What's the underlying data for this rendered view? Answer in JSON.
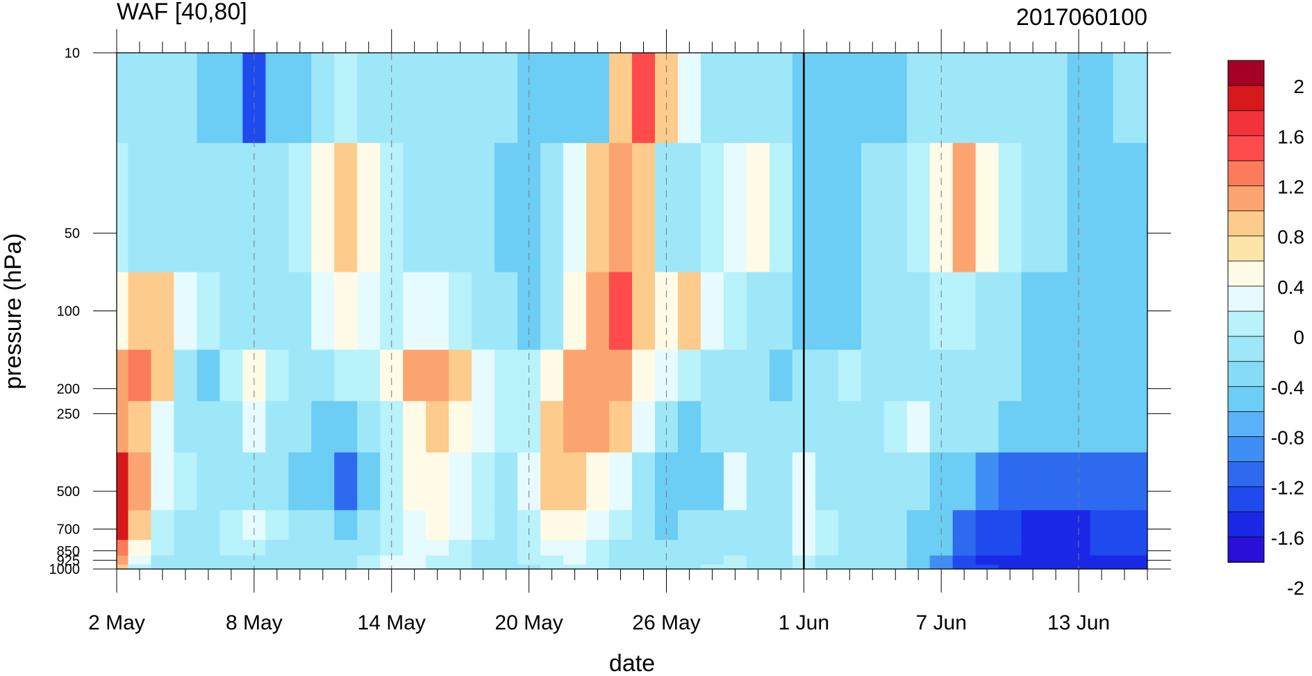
{
  "chart_data": {
    "type": "heatmap",
    "title_left": "WAF [40,80]",
    "title_right": "2017060100",
    "xlabel": "date",
    "ylabel": "pressure (hPa)",
    "x_tick_labels": [
      "2 May",
      "8 May",
      "14 May",
      "20 May",
      "26 May",
      "1 Jun",
      "7 Jun",
      "13 Jun"
    ],
    "y_tick_labels": [
      "10",
      "50",
      "100",
      "200",
      "250",
      "500",
      "700",
      "850",
      "925",
      "1000"
    ],
    "y_axis_scale": "log",
    "yrange_hPa": [
      1000,
      10
    ],
    "xrange": [
      "2 May",
      "16 Jun"
    ],
    "contour_interval": 0.2,
    "vertical_marker": "1 Jun",
    "legend_placement": "right",
    "colorbar": {
      "labels": [
        "2",
        "1.6",
        "1.2",
        "0.8",
        "0.4",
        "0",
        "-0.4",
        "-0.8",
        "-1.2",
        "-1.6",
        "-2"
      ],
      "colors": [
        "#a50026",
        "#d7191c",
        "#f2333a",
        "#ff4b4b",
        "#fc7b5a",
        "#fca46f",
        "#fdcb8b",
        "#fde5a9",
        "#fffbe6",
        "#e6fbff",
        "#b8f2fb",
        "#9ee7f9",
        "#86dcf7",
        "#6ccdf5",
        "#5ab1f7",
        "#3f8ef5",
        "#2d6af0",
        "#1f4aee",
        "#1a28e6",
        "#2a0fd8"
      ]
    },
    "pressure_levels": [
      10,
      50,
      100,
      200,
      250,
      500,
      700,
      850,
      925,
      1000
    ],
    "days": [
      "2 May",
      "3 May",
      "4 May",
      "5 May",
      "6 May",
      "7 May",
      "8 May",
      "9 May",
      "10 May",
      "11 May",
      "12 May",
      "13 May",
      "14 May",
      "15 May",
      "16 May",
      "17 May",
      "18 May",
      "19 May",
      "20 May",
      "21 May",
      "22 May",
      "23 May",
      "24 May",
      "25 May",
      "26 May",
      "27 May",
      "28 May",
      "29 May",
      "30 May",
      "31 May",
      "1 Jun",
      "2 Jun",
      "3 Jun",
      "4 Jun",
      "5 Jun",
      "6 Jun",
      "7 Jun",
      "8 Jun",
      "9 Jun",
      "10 Jun",
      "11 Jun",
      "12 Jun",
      "13 Jun",
      "14 Jun",
      "15 Jun",
      "16 Jun"
    ],
    "values": [
      [
        -0.2,
        -0.2,
        -0.4,
        -0.4,
        -0.6,
        -0.6,
        -1.4,
        -0.8,
        -0.6,
        -0.2,
        0.0,
        -0.2,
        -0.4,
        -0.4,
        -0.4,
        -0.2,
        -0.2,
        -0.4,
        -0.6,
        -0.6,
        -0.8,
        -0.6,
        0.6,
        1.4,
        0.6,
        0.2,
        -0.2,
        -0.2,
        -0.2,
        -0.2,
        -0.6,
        -0.6,
        -0.6,
        -0.6,
        -0.6,
        -0.4,
        -0.4,
        -0.2,
        -0.2,
        -0.4,
        -0.4,
        -0.4,
        -0.6,
        -0.6,
        -0.4,
        -0.4
      ],
      [
        0.0,
        -0.2,
        -0.2,
        -0.2,
        -0.4,
        -0.4,
        -0.4,
        -0.4,
        0.0,
        0.4,
        0.6,
        0.4,
        0.0,
        -0.2,
        -0.2,
        -0.2,
        -0.2,
        -0.6,
        -0.6,
        -0.4,
        0.2,
        0.6,
        0.8,
        0.6,
        -0.2,
        -0.2,
        0.0,
        0.2,
        0.4,
        0.0,
        -0.6,
        -0.6,
        -0.6,
        -0.4,
        -0.2,
        0.0,
        0.4,
        0.8,
        0.4,
        0.0,
        -0.2,
        -0.4,
        -0.6,
        -0.8,
        -0.8,
        -0.8
      ],
      [
        0.4,
        0.6,
        0.6,
        0.2,
        0.0,
        -0.2,
        -0.2,
        -0.4,
        -0.2,
        0.2,
        0.4,
        0.2,
        0.0,
        0.2,
        0.2,
        0.0,
        -0.2,
        -0.4,
        -0.6,
        -0.2,
        0.4,
        0.8,
        1.4,
        0.6,
        0.4,
        0.6,
        0.2,
        0.0,
        -0.2,
        -0.4,
        -0.6,
        -0.6,
        -0.6,
        -0.4,
        -0.2,
        -0.2,
        0.0,
        0.0,
        -0.2,
        -0.4,
        -0.6,
        -0.8,
        -0.8,
        -0.8,
        -0.8,
        -0.8
      ],
      [
        0.8,
        1.2,
        0.6,
        -0.4,
        -0.8,
        0.0,
        0.4,
        0.0,
        -0.4,
        -0.2,
        0.0,
        0.0,
        0.4,
        0.8,
        1.0,
        0.6,
        0.2,
        0.0,
        0.0,
        0.4,
        0.8,
        1.0,
        0.8,
        0.4,
        0.2,
        0.0,
        -0.2,
        -0.4,
        -0.4,
        -0.8,
        -0.4,
        -0.2,
        0.0,
        -0.2,
        -0.2,
        -0.2,
        -0.4,
        -0.4,
        -0.4,
        -0.4,
        -0.6,
        -0.6,
        -0.8,
        -0.8,
        -0.8,
        -0.8
      ],
      [
        0.8,
        0.6,
        0.2,
        -0.4,
        -0.4,
        -0.2,
        0.2,
        -0.2,
        -0.4,
        -0.6,
        -0.8,
        -0.4,
        0.0,
        0.4,
        0.6,
        0.4,
        0.2,
        0.0,
        0.0,
        0.6,
        0.8,
        0.8,
        0.6,
        0.2,
        -0.2,
        -0.6,
        -0.4,
        -0.4,
        -0.4,
        -0.4,
        -0.2,
        -0.2,
        -0.2,
        -0.2,
        0.0,
        0.2,
        -0.2,
        -0.4,
        -0.4,
        -0.6,
        -0.6,
        -0.6,
        -0.8,
        -0.8,
        -0.8,
        -0.8
      ],
      [
        1.6,
        0.8,
        0.2,
        0.0,
        -0.2,
        -0.4,
        -0.2,
        -0.2,
        -0.6,
        -0.8,
        -1.2,
        -0.6,
        0.0,
        0.4,
        0.4,
        0.2,
        0.0,
        -0.2,
        0.2,
        0.6,
        0.6,
        0.4,
        0.2,
        -0.4,
        -0.6,
        -0.8,
        -0.6,
        0.2,
        -0.2,
        -0.4,
        0.2,
        -0.2,
        -0.4,
        -0.4,
        -0.4,
        -0.4,
        -0.6,
        -0.8,
        -1.0,
        -1.2,
        -1.2,
        -1.2,
        -1.2,
        -1.2,
        -1.2,
        -1.2
      ],
      [
        1.6,
        0.6,
        0.0,
        -0.2,
        -0.2,
        0.0,
        0.2,
        0.0,
        -0.2,
        -0.4,
        -0.6,
        -0.4,
        0.0,
        0.2,
        0.4,
        0.2,
        0.0,
        -0.2,
        0.0,
        0.4,
        0.4,
        0.2,
        0.0,
        -0.4,
        -0.6,
        -0.4,
        -0.2,
        -0.2,
        -0.2,
        -0.4,
        0.2,
        0.0,
        -0.4,
        -0.4,
        -0.4,
        -0.6,
        -0.8,
        -1.2,
        -1.4,
        -1.4,
        -1.6,
        -1.8,
        -1.6,
        -1.4,
        -1.4,
        -1.4
      ],
      [
        1.2,
        0.4,
        0.0,
        -0.2,
        -0.2,
        0.0,
        0.0,
        -0.2,
        -0.2,
        -0.4,
        -0.4,
        -0.2,
        0.0,
        0.2,
        0.2,
        0.0,
        -0.2,
        -0.2,
        0.0,
        0.2,
        0.2,
        0.0,
        -0.2,
        -0.4,
        -0.4,
        -0.2,
        -0.2,
        -0.2,
        -0.2,
        -0.4,
        0.2,
        0.0,
        -0.2,
        -0.2,
        -0.4,
        -0.6,
        -0.8,
        -1.2,
        -1.4,
        -1.4,
        -1.6,
        -1.6,
        -1.6,
        -1.4,
        -1.4,
        -1.4
      ],
      [
        1.0,
        0.2,
        -0.2,
        -0.2,
        -0.2,
        -0.2,
        -0.2,
        -0.2,
        -0.2,
        -0.2,
        -0.2,
        0.0,
        0.2,
        0.2,
        0.0,
        0.0,
        -0.2,
        -0.2,
        0.0,
        0.0,
        0.2,
        0.0,
        -0.2,
        -0.2,
        -0.4,
        -0.2,
        -0.2,
        0.0,
        -0.2,
        -0.2,
        0.0,
        -0.2,
        -0.2,
        -0.2,
        -0.4,
        -0.6,
        -1.0,
        -1.4,
        -1.6,
        -1.6,
        -1.6,
        -1.6,
        -1.6,
        -1.6,
        -1.6,
        -1.6
      ],
      [
        0.6,
        0.0,
        -0.2,
        -0.2,
        -0.2,
        -0.2,
        -0.2,
        -0.2,
        -0.2,
        -0.2,
        -0.2,
        0.0,
        0.2,
        0.2,
        0.0,
        0.0,
        -0.2,
        -0.2,
        -0.2,
        0.0,
        0.0,
        0.0,
        -0.2,
        -0.2,
        -0.2,
        -0.2,
        0.0,
        0.0,
        -0.2,
        -0.2,
        0.0,
        -0.2,
        -0.2,
        -0.2,
        -0.4,
        -0.6,
        -1.0,
        -1.4,
        -1.4,
        -1.6,
        -1.6,
        -1.6,
        -1.6,
        -1.6,
        -1.6,
        -1.6
      ]
    ]
  }
}
